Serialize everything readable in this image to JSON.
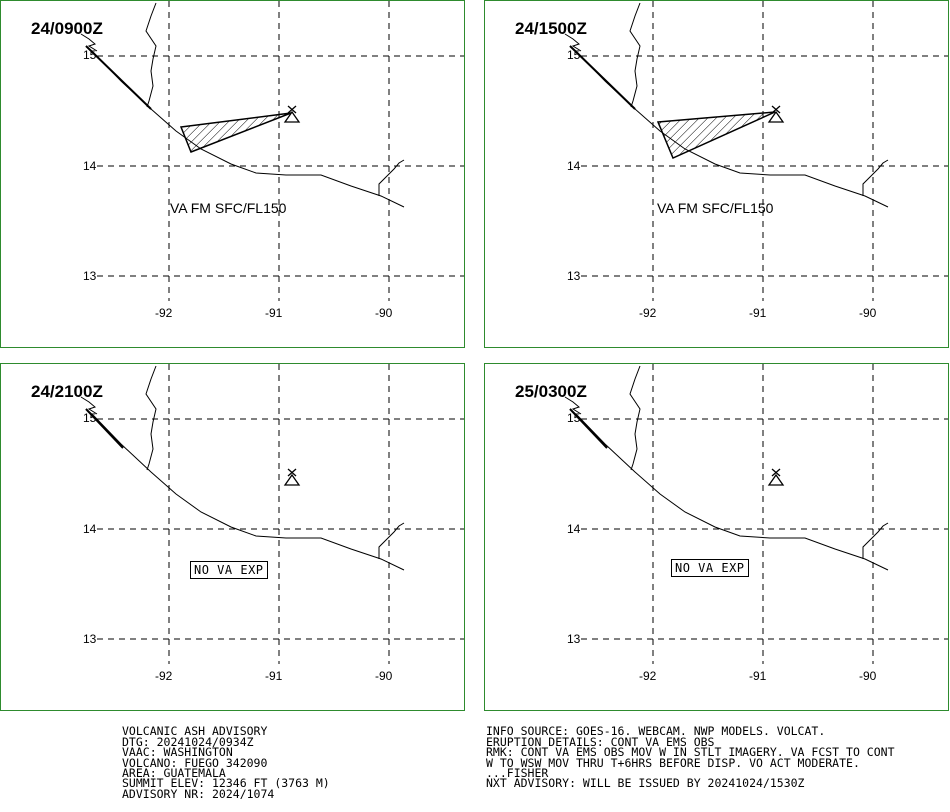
{
  "panels": [
    {
      "time": "24/0900Z",
      "label": "VA FM SFC/FL150",
      "ash": true,
      "no_va": false
    },
    {
      "time": "24/1500Z",
      "label": "VA FM SFC/FL150",
      "ash": true,
      "no_va": false
    },
    {
      "time": "24/2100Z",
      "label": "",
      "ash": false,
      "no_va": true
    },
    {
      "time": "25/0300Z",
      "label": "",
      "ash": false,
      "no_va": true
    }
  ],
  "axes": {
    "lat_labels": [
      "15",
      "14",
      "13"
    ],
    "lon_labels": [
      "-92",
      "-91",
      "-90"
    ]
  },
  "no_va_text": "NO VA EXP",
  "advisory_left": [
    "VOLCANIC ASH ADVISORY",
    "DTG: 20241024/0934Z",
    "VAAC: WASHINGTON",
    "VOLCANO: FUEGO 342090",
    "AREA: GUATEMALA",
    "SUMMIT ELEV: 12346 FT (3763 M)",
    "ADVISORY NR: 2024/1074"
  ],
  "advisory_right": [
    "INFO SOURCE: GOES-16. WEBCAM. NWP MODELS. VOLCAT.",
    "ERUPTION DETAILS: CONT VA EMS OBS",
    "RMK: CONT VA EMS OBS MOV W IN STLT IMAGERY. VA FCST TO CONT",
    "W TO WSW MOV THRU T+6HRS BEFORE DISP. VO ACT MODERATE.",
    "...FISHER",
    "NXT ADVISORY: WILL BE ISSUED BY 20241024/1530Z"
  ],
  "colors": {
    "border": "#2e8b2e",
    "ink": "#000000"
  }
}
